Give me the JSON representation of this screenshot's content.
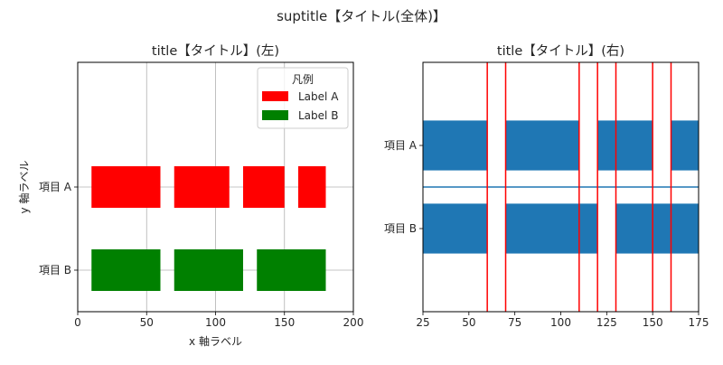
{
  "suptitle": "suptitle【タイトル(全体)】",
  "chart_data": [
    {
      "type": "broken_barh",
      "title": "title【タイトル】(左)",
      "xlabel": "x 軸ラベル",
      "ylabel": "y 軸ラベル",
      "xlim": [
        0,
        200
      ],
      "ylim": [
        -1.0,
        2.0
      ],
      "xticks": [
        0,
        50,
        100,
        150,
        200
      ],
      "yticks": [
        {
          "value": 0.5,
          "label": "項目 A"
        },
        {
          "value": 1.5,
          "label": "項目 B"
        }
      ],
      "grid": true,
      "legend": {
        "title": "凡例",
        "placement": "top-right",
        "entries": [
          {
            "label": "Label A",
            "color": "#ff0000"
          },
          {
            "label": "Label B",
            "color": "#008000"
          }
        ]
      },
      "series": [
        {
          "name": "Label A",
          "color": "#ff0000",
          "y": 0.5,
          "height": 0.5,
          "ranges": [
            [
              10,
              50
            ],
            [
              70,
              40
            ],
            [
              120,
              30
            ],
            [
              160,
              20
            ]
          ]
        },
        {
          "name": "Label B",
          "color": "#008000",
          "y": 1.5,
          "height": 0.5,
          "ranges": [
            [
              10,
              50
            ],
            [
              70,
              50
            ],
            [
              130,
              50
            ]
          ]
        }
      ]
    },
    {
      "type": "broken_barh",
      "title": "title【タイトル】(右)",
      "xlim": [
        25,
        175
      ],
      "ylim": [
        -0.5,
        2.5
      ],
      "xticks": [
        25,
        50,
        75,
        100,
        125,
        150,
        175
      ],
      "yticks": [
        {
          "value": 0.5,
          "label": "項目 A"
        },
        {
          "value": 1.5,
          "label": "項目 B"
        }
      ],
      "grid": false,
      "bar_color": "#1f77b4",
      "series": [
        {
          "y": 0.5,
          "height": 0.6,
          "ranges": [
            [
              0,
              60
            ],
            [
              70,
              40
            ],
            [
              120,
              30
            ],
            [
              160,
              40
            ]
          ]
        },
        {
          "y": 1.5,
          "height": 0.6,
          "ranges": [
            [
              0,
              60
            ],
            [
              70,
              50
            ],
            [
              130,
              70
            ]
          ]
        }
      ],
      "hline": {
        "y": 1.0,
        "color": "#1f77b4"
      },
      "vlines": {
        "x": [
          60,
          70,
          110,
          120,
          130,
          150,
          160
        ],
        "color": "#ff0000"
      }
    }
  ]
}
